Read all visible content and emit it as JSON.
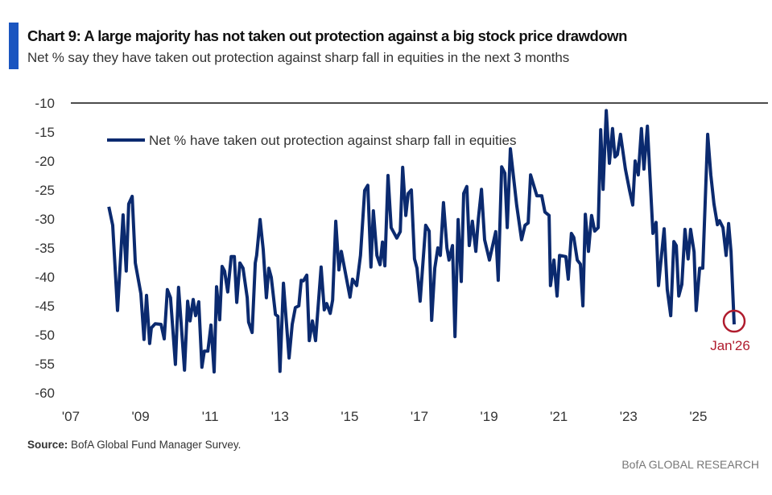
{
  "header": {
    "title": "Chart 9: A large majority has not taken out protection against a big stock price drawdown",
    "subtitle": "Net % say they have taken out protection against sharp fall in equities in the next 3 months",
    "accent_color": "#1a55c0"
  },
  "footer": {
    "source_label": "Source:",
    "source_text": " BofA Global Fund Manager Survey.",
    "brand": "BofA GLOBAL RESEARCH"
  },
  "chart_data": {
    "type": "line",
    "title": "",
    "xlabel": "",
    "ylabel": "",
    "xlim": [
      2007,
      2027
    ],
    "ylim": [
      -60,
      -10
    ],
    "x_ticks": [
      2007,
      2009,
      2011,
      2013,
      2015,
      2017,
      2019,
      2021,
      2023,
      2025
    ],
    "x_tick_labels": [
      "'07",
      "'09",
      "'11",
      "'13",
      "'15",
      "'17",
      "'19",
      "'21",
      "'23",
      "'25"
    ],
    "y_ticks": [
      -10,
      -15,
      -20,
      -25,
      -30,
      -35,
      -40,
      -45,
      -50,
      -55,
      -60
    ],
    "y_tick_labels": [
      "-10",
      "-15",
      "-20",
      "-25",
      "-30",
      "-35",
      "-40",
      "-45",
      "-50",
      "-55",
      "-60"
    ],
    "grid": false,
    "legend_position": "top-left",
    "annotation": {
      "label": "Jan'26",
      "x": 2026.03,
      "y": -48.2,
      "color": "#b01c2e"
    },
    "series": [
      {
        "name": "Net % have taken out protection against sharp fall in equities",
        "color": "#0b2a6f",
        "x": [
          2008.09,
          2008.2,
          2008.34,
          2008.5,
          2008.59,
          2008.66,
          2008.76,
          2008.85,
          2009.01,
          2009.1,
          2009.17,
          2009.26,
          2009.31,
          2009.42,
          2009.59,
          2009.68,
          2009.77,
          2009.86,
          2010.0,
          2010.09,
          2010.26,
          2010.35,
          2010.42,
          2010.51,
          2010.58,
          2010.67,
          2010.76,
          2010.83,
          2010.93,
          2011.02,
          2011.11,
          2011.18,
          2011.27,
          2011.34,
          2011.41,
          2011.5,
          2011.6,
          2011.69,
          2011.76,
          2011.85,
          2011.94,
          2012.06,
          2012.1,
          2012.2,
          2012.29,
          2012.33,
          2012.43,
          2012.52,
          2012.61,
          2012.68,
          2012.75,
          2012.87,
          2012.94,
          2013.0,
          2013.1,
          2013.26,
          2013.35,
          2013.44,
          2013.54,
          2013.61,
          2013.67,
          2013.77,
          2013.84,
          2013.93,
          2014.02,
          2014.18,
          2014.27,
          2014.34,
          2014.44,
          2014.51,
          2014.6,
          2014.69,
          2014.76,
          2015.01,
          2015.08,
          2015.2,
          2015.31,
          2015.43,
          2015.52,
          2015.61,
          2015.68,
          2015.78,
          2015.87,
          2015.94,
          2016.01,
          2016.1,
          2016.19,
          2016.35,
          2016.45,
          2016.52,
          2016.61,
          2016.68,
          2016.77,
          2016.86,
          2016.93,
          2017.02,
          2017.18,
          2017.28,
          2017.35,
          2017.44,
          2017.53,
          2017.6,
          2017.69,
          2017.79,
          2017.85,
          2017.95,
          2018.02,
          2018.11,
          2018.2,
          2018.27,
          2018.36,
          2018.43,
          2018.52,
          2018.62,
          2018.69,
          2018.78,
          2018.87,
          2019.01,
          2019.19,
          2019.26,
          2019.36,
          2019.45,
          2019.52,
          2019.61,
          2019.79,
          2019.93,
          2020.03,
          2020.12,
          2020.19,
          2020.37,
          2020.51,
          2020.6,
          2020.72,
          2020.76,
          2020.86,
          2020.95,
          2021.02,
          2021.2,
          2021.27,
          2021.36,
          2021.43,
          2021.53,
          2021.62,
          2021.69,
          2021.76,
          2021.85,
          2021.94,
          2022.03,
          2022.13,
          2022.2,
          2022.27,
          2022.36,
          2022.45,
          2022.54,
          2022.61,
          2022.68,
          2022.77,
          2022.91,
          2023.03,
          2023.12,
          2023.19,
          2023.28,
          2023.37,
          2023.44,
          2023.54,
          2023.7,
          2023.79,
          2023.86,
          2024.02,
          2024.11,
          2024.21,
          2024.3,
          2024.37,
          2024.44,
          2024.53,
          2024.62,
          2024.71,
          2024.78,
          2024.88,
          2024.94,
          2025.04,
          2025.13,
          2025.27,
          2025.36,
          2025.45,
          2025.55,
          2025.61,
          2025.71,
          2025.8,
          2025.87,
          2025.94,
          2026.03
        ],
        "y": [
          -27.9,
          -31.1,
          -45.8,
          -29.3,
          -39.0,
          -27.4,
          -26.1,
          -37.6,
          -42.9,
          -50.8,
          -43.2,
          -51.5,
          -48.8,
          -48.1,
          -48.2,
          -50.7,
          -42.2,
          -43.6,
          -55.1,
          -41.8,
          -56.1,
          -44.2,
          -47.6,
          -43.9,
          -46.7,
          -44.3,
          -55.6,
          -52.8,
          -52.8,
          -48.3,
          -56.4,
          -41.7,
          -47.4,
          -38.2,
          -39.0,
          -42.6,
          -36.5,
          -36.5,
          -44.4,
          -37.6,
          -38.5,
          -43.6,
          -47.8,
          -49.6,
          -37.6,
          -36.3,
          -30.1,
          -35.3,
          -43.6,
          -38.5,
          -40.1,
          -46.5,
          -46.8,
          -56.3,
          -41.1,
          -54.0,
          -48.2,
          -45.3,
          -45.0,
          -40.6,
          -40.7,
          -39.7,
          -51.0,
          -47.6,
          -51.0,
          -38.3,
          -45.7,
          -44.6,
          -46.3,
          -44.0,
          -30.4,
          -38.8,
          -35.6,
          -43.5,
          -40.4,
          -41.5,
          -36.3,
          -25.1,
          -24.2,
          -38.3,
          -28.6,
          -36.3,
          -37.9,
          -34.0,
          -38.1,
          -22.5,
          -31.5,
          -33.3,
          -32.2,
          -21.1,
          -29.4,
          -25.6,
          -25.0,
          -36.9,
          -38.5,
          -44.2,
          -31.1,
          -32.1,
          -47.5,
          -38.5,
          -35.0,
          -36.3,
          -27.2,
          -35.0,
          -37.1,
          -34.6,
          -50.3,
          -30.1,
          -40.8,
          -25.6,
          -24.4,
          -34.6,
          -30.4,
          -35.6,
          -30.0,
          -24.9,
          -33.6,
          -37.1,
          -32.2,
          -40.6,
          -21.0,
          -22.1,
          -31.5,
          -17.9,
          -27.6,
          -33.6,
          -31.1,
          -30.7,
          -22.4,
          -26.0,
          -26.0,
          -28.8,
          -29.4,
          -41.5,
          -37.1,
          -43.3,
          -36.3,
          -36.5,
          -40.4,
          -32.5,
          -33.2,
          -37.1,
          -37.8,
          -45.0,
          -29.2,
          -35.6,
          -29.4,
          -32.1,
          -31.5,
          -14.6,
          -24.9,
          -11.3,
          -20.4,
          -14.4,
          -19.3,
          -18.9,
          -15.4,
          -21.4,
          -25.1,
          -27.6,
          -20.0,
          -22.4,
          -14.4,
          -21.4,
          -14.0,
          -32.5,
          -30.6,
          -41.5,
          -31.7,
          -42.2,
          -46.7,
          -33.9,
          -34.6,
          -43.3,
          -41.3,
          -31.8,
          -36.9,
          -31.8,
          -35.7,
          -45.8,
          -38.5,
          -38.5,
          -15.4,
          -22.4,
          -27.4,
          -31.0,
          -30.3,
          -31.5,
          -36.3,
          -30.8,
          -35.7,
          -48.2
        ]
      }
    ]
  }
}
